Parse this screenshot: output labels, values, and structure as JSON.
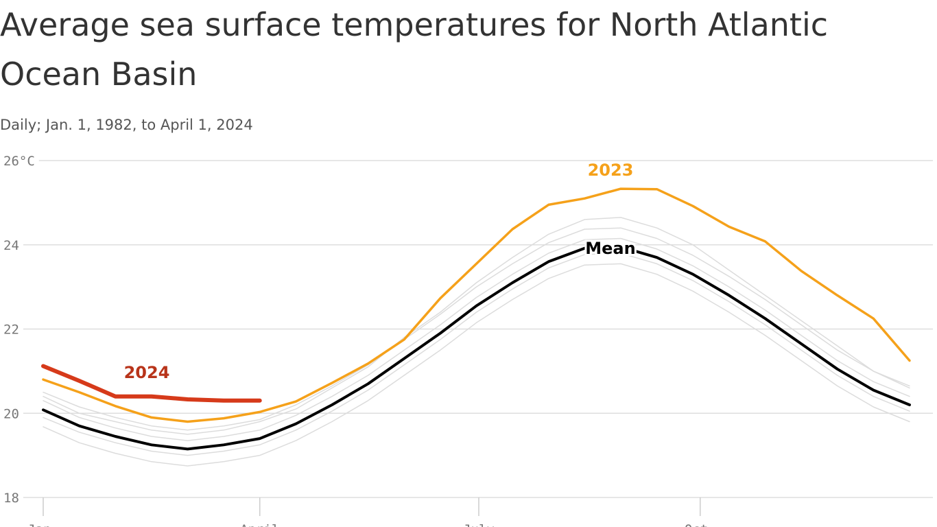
{
  "chart_data": {
    "type": "line",
    "title": "Average sea surface temperatures for North Atlantic Ocean Basin",
    "subtitle": "Daily; Jan. 1, 1982, to April 1, 2024",
    "x": [
      1,
      16,
      31,
      46,
      61,
      76,
      91,
      106,
      121,
      136,
      151,
      166,
      181,
      196,
      211,
      226,
      241,
      256,
      271,
      286,
      301,
      316,
      331,
      346,
      361
    ],
    "xlim": [
      1,
      366
    ],
    "xticks": [
      {
        "value": 1,
        "label": "Jan."
      },
      {
        "value": 91,
        "label": "April"
      },
      {
        "value": 182,
        "label": "July"
      },
      {
        "value": 274,
        "label": "Oct."
      }
    ],
    "ylim": [
      18,
      26
    ],
    "yticks": [
      18,
      20,
      22,
      24,
      {
        "value": 26,
        "label": "26°C"
      }
    ],
    "grid": true,
    "series": [
      {
        "color": "#dcdcdc",
        "values": [
          19.68,
          19.3,
          19.05,
          18.85,
          18.75,
          18.85,
          19.0,
          19.35,
          19.8,
          20.3,
          20.9,
          21.5,
          22.15,
          22.7,
          23.2,
          23.52,
          23.55,
          23.3,
          22.9,
          22.4,
          21.85,
          21.25,
          20.65,
          20.15,
          19.8
        ]
      },
      {
        "color": "#dcdcdc",
        "values": [
          19.9,
          19.55,
          19.3,
          19.1,
          19.0,
          19.1,
          19.25,
          19.6,
          20.05,
          20.55,
          21.15,
          21.75,
          22.4,
          22.95,
          23.45,
          23.77,
          23.8,
          23.55,
          23.15,
          22.65,
          22.1,
          21.5,
          20.9,
          20.4,
          20.05
        ]
      },
      {
        "color": "#dcdcdc",
        "values": [
          20.3,
          19.9,
          19.65,
          19.45,
          19.35,
          19.45,
          19.6,
          19.95,
          20.4,
          20.9,
          21.5,
          22.1,
          22.75,
          23.3,
          23.8,
          24.12,
          24.15,
          23.9,
          23.5,
          23.0,
          22.45,
          21.85,
          21.25,
          20.75,
          20.4
        ]
      },
      {
        "color": "#dcdcdc",
        "values": [
          20.5,
          20.15,
          19.9,
          19.7,
          19.6,
          19.7,
          19.85,
          20.2,
          20.65,
          21.15,
          21.75,
          22.35,
          23.0,
          23.55,
          24.05,
          24.37,
          24.4,
          24.15,
          23.75,
          23.25,
          22.7,
          22.1,
          21.5,
          21.0,
          20.65
        ]
      },
      {
        "color": "#dcdcdc",
        "values": [
          20.4,
          20.0,
          19.8,
          19.6,
          19.5,
          19.6,
          19.8,
          20.1,
          20.6,
          21.1,
          21.8,
          22.4,
          23.1,
          23.7,
          24.25,
          24.6,
          24.65,
          24.4,
          24.0,
          23.4,
          22.8,
          22.2,
          21.6,
          21.0,
          20.6
        ]
      },
      {
        "name": "2023",
        "color": "#f5a11a",
        "values": [
          20.8,
          20.5,
          20.17,
          19.9,
          19.8,
          19.88,
          20.03,
          20.28,
          20.72,
          21.18,
          21.75,
          22.73,
          23.55,
          24.37,
          24.95,
          25.1,
          25.33,
          25.32,
          24.92,
          24.43,
          24.08,
          23.38,
          22.8,
          22.25,
          21.25
        ]
      },
      {
        "name": "2024",
        "color": "#d63a1a",
        "values": [
          21.12,
          20.77,
          20.4,
          20.4,
          20.33,
          20.3,
          20.3,
          null,
          null,
          null,
          null,
          null,
          null,
          null,
          null,
          null,
          null,
          null,
          null,
          null,
          null,
          null,
          null,
          null,
          null
        ]
      },
      {
        "name": "Mean",
        "color": "#000000",
        "values": [
          20.08,
          19.7,
          19.45,
          19.25,
          19.15,
          19.25,
          19.4,
          19.75,
          20.2,
          20.7,
          21.3,
          21.9,
          22.55,
          23.1,
          23.6,
          23.92,
          23.95,
          23.7,
          23.3,
          22.8,
          22.25,
          21.65,
          21.05,
          20.55,
          20.2
        ]
      }
    ]
  }
}
